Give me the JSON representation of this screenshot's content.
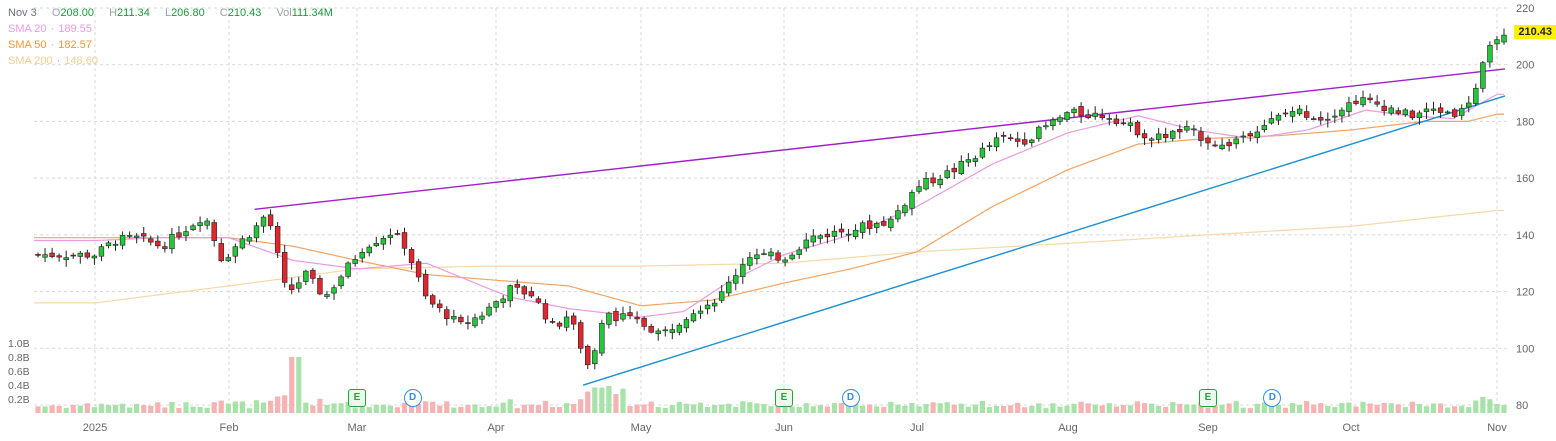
{
  "header": {
    "date": "Nov 3",
    "ohlc": [
      {
        "key": "O",
        "value": "208.00"
      },
      {
        "key": "H",
        "value": "211.34"
      },
      {
        "key": "L",
        "value": "206.80"
      },
      {
        "key": "C",
        "value": "210.43"
      },
      {
        "key": "Vol",
        "value": "111.34M"
      }
    ]
  },
  "moving_averages": [
    {
      "label": "SMA 20",
      "value": "189.55",
      "color": "#e99be0"
    },
    {
      "label": "SMA 50",
      "value": "182.57",
      "color": "#f4a460"
    },
    {
      "label": "SMA 200",
      "value": "148.60",
      "color": "#f5d9a8"
    }
  ],
  "last_price": "210.43",
  "events": [
    {
      "kind": "E",
      "month_index": 2.0
    },
    {
      "kind": "D",
      "month_index": 2.4
    },
    {
      "kind": "E",
      "month_index": 5.0
    },
    {
      "kind": "D",
      "month_index": 5.5
    },
    {
      "kind": "E",
      "month_index": 8.0
    },
    {
      "kind": "D",
      "month_index": 8.45
    }
  ],
  "chart_data": {
    "type": "candlestick",
    "x_labels": [
      "2025",
      "Feb",
      "Mar",
      "Apr",
      "May",
      "Jun",
      "Jul",
      "Aug",
      "Sep",
      "Oct",
      "Nov"
    ],
    "y_axis": {
      "ticks": [
        80,
        100,
        120,
        140,
        160,
        180,
        200,
        220
      ],
      "range": [
        80,
        220
      ]
    },
    "volume_axis": {
      "ticks": [
        "0.2B",
        "0.4B",
        "0.6B",
        "0.8B",
        "1.0B"
      ],
      "values": [
        0.2,
        0.4,
        0.6,
        0.8,
        1.0
      ],
      "range": [
        0,
        1.0
      ]
    },
    "grid": true,
    "colors": {
      "up": "#26c63a",
      "down": "#e0272f",
      "vol_up": "#a7e3a9",
      "vol_down": "#f5b3b3",
      "sma20": "#e99be0",
      "sma50": "#f4a460",
      "sma200": "#f5d9a8",
      "trend_upper": "#a020c8",
      "trend_lower": "#1a8fd6"
    },
    "price_anchors": [
      [
        0,
        133
      ],
      [
        0.15,
        138
      ],
      [
        0.3,
        139
      ],
      [
        0.5,
        136
      ],
      [
        0.7,
        143
      ],
      [
        0.82,
        147
      ],
      [
        0.95,
        131
      ],
      [
        1.05,
        136
      ],
      [
        1.2,
        142
      ],
      [
        1.3,
        148
      ],
      [
        1.45,
        119
      ],
      [
        1.6,
        126
      ],
      [
        1.75,
        118
      ],
      [
        1.9,
        127
      ],
      [
        2.05,
        136
      ],
      [
        2.25,
        141
      ],
      [
        2.35,
        136
      ],
      [
        2.5,
        117
      ],
      [
        2.75,
        108
      ],
      [
        2.9,
        112
      ],
      [
        3.1,
        121
      ],
      [
        3.25,
        119
      ],
      [
        3.4,
        107
      ],
      [
        3.5,
        112
      ],
      [
        3.65,
        92
      ],
      [
        3.75,
        112
      ],
      [
        3.95,
        110
      ],
      [
        4.15,
        105
      ],
      [
        4.35,
        113
      ],
      [
        4.55,
        118
      ],
      [
        4.75,
        133
      ],
      [
        5.0,
        132
      ],
      [
        5.2,
        139
      ],
      [
        5.5,
        142
      ],
      [
        5.8,
        145
      ],
      [
        6.0,
        157
      ],
      [
        6.25,
        163
      ],
      [
        6.55,
        174
      ],
      [
        6.7,
        173
      ],
      [
        6.85,
        178
      ],
      [
        7.0,
        183
      ],
      [
        7.3,
        182
      ],
      [
        7.6,
        174
      ],
      [
        7.85,
        177
      ],
      [
        8.1,
        171
      ],
      [
        8.35,
        178
      ],
      [
        8.6,
        184
      ],
      [
        8.8,
        181
      ],
      [
        9.05,
        188
      ],
      [
        9.25,
        185
      ],
      [
        9.4,
        182
      ],
      [
        9.55,
        184
      ],
      [
        9.75,
        183
      ],
      [
        9.85,
        191
      ],
      [
        9.92,
        202
      ],
      [
        10.0,
        210.43
      ]
    ],
    "sma20_anchors": [
      [
        0,
        138
      ],
      [
        0.5,
        139
      ],
      [
        1.0,
        139
      ],
      [
        1.5,
        131
      ],
      [
        2.0,
        128
      ],
      [
        2.5,
        130
      ],
      [
        2.8,
        124
      ],
      [
        3.1,
        118
      ],
      [
        3.5,
        114
      ],
      [
        4.0,
        111
      ],
      [
        4.3,
        113
      ],
      [
        4.6,
        123
      ],
      [
        5.0,
        133
      ],
      [
        5.5,
        140
      ],
      [
        6.0,
        150
      ],
      [
        6.5,
        165
      ],
      [
        7.0,
        176
      ],
      [
        7.5,
        182
      ],
      [
        7.9,
        177
      ],
      [
        8.3,
        174
      ],
      [
        8.7,
        177
      ],
      [
        9.1,
        184
      ],
      [
        9.4,
        182
      ],
      [
        9.7,
        181
      ],
      [
        10.0,
        189.55
      ]
    ],
    "sma50_anchors": [
      [
        0,
        139
      ],
      [
        0.5,
        139
      ],
      [
        1.0,
        139
      ],
      [
        1.5,
        136
      ],
      [
        2.0,
        131
      ],
      [
        2.5,
        126
      ],
      [
        3.0,
        124
      ],
      [
        3.5,
        122
      ],
      [
        4.0,
        115
      ],
      [
        4.5,
        117
      ],
      [
        5.0,
        123
      ],
      [
        5.5,
        128
      ],
      [
        6.0,
        134
      ],
      [
        6.5,
        150
      ],
      [
        7.0,
        163
      ],
      [
        7.5,
        172
      ],
      [
        8.0,
        174
      ],
      [
        8.5,
        175
      ],
      [
        9.0,
        177
      ],
      [
        9.5,
        180
      ],
      [
        9.8,
        180
      ],
      [
        10.0,
        182.57
      ]
    ],
    "sma200_anchors": [
      [
        0,
        116
      ],
      [
        1.0,
        122
      ],
      [
        2.0,
        128
      ],
      [
        3.0,
        129
      ],
      [
        4.0,
        129
      ],
      [
        5.0,
        130
      ],
      [
        6.0,
        134
      ],
      [
        7.0,
        137
      ],
      [
        8.0,
        140
      ],
      [
        9.0,
        143
      ],
      [
        10.0,
        148.6
      ]
    ],
    "trendlines": [
      {
        "name": "upper",
        "from": [
          1.2,
          149
        ],
        "to": [
          10.0,
          198.5
        ]
      },
      {
        "name": "lower",
        "from": [
          3.6,
          87
        ],
        "to": [
          10.0,
          189
        ]
      }
    ]
  }
}
